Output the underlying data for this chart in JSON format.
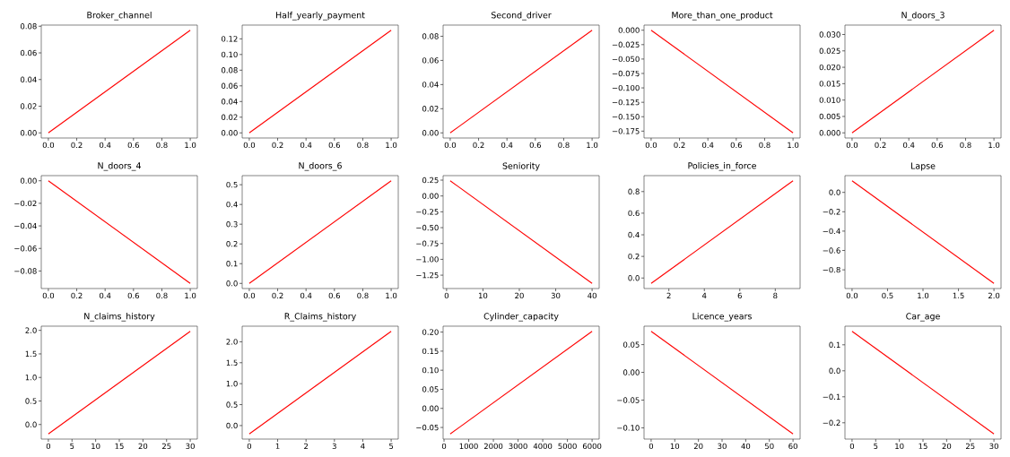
{
  "chart_data": [
    {
      "type": "line",
      "title": "Broker_channel",
      "x": [
        0,
        1
      ],
      "values": [
        0,
        0.077
      ],
      "color": "#ff0000",
      "xlim": [
        -0.05,
        1.05
      ],
      "ylim": [
        -0.00385,
        0.08085
      ],
      "xticks": [
        {
          "value": 0,
          "label": "0.0"
        },
        {
          "value": 0.2,
          "label": "0.2"
        },
        {
          "value": 0.4,
          "label": "0.4"
        },
        {
          "value": 0.6,
          "label": "0.6"
        },
        {
          "value": 0.8,
          "label": "0.8"
        },
        {
          "value": 1,
          "label": "1.0"
        }
      ],
      "yticks": [
        {
          "value": 0,
          "label": "0.00"
        },
        {
          "value": 0.02,
          "label": "0.02"
        },
        {
          "value": 0.04,
          "label": "0.04"
        },
        {
          "value": 0.06,
          "label": "0.06"
        },
        {
          "value": 0.08,
          "label": "0.08"
        }
      ]
    },
    {
      "type": "line",
      "title": "Half_yearly_payment",
      "x": [
        0,
        1
      ],
      "values": [
        0,
        0.131
      ],
      "color": "#ff0000",
      "xlim": [
        -0.05,
        1.05
      ],
      "ylim": [
        -0.00655,
        0.13755
      ],
      "xticks": [
        {
          "value": 0,
          "label": "0.0"
        },
        {
          "value": 0.2,
          "label": "0.2"
        },
        {
          "value": 0.4,
          "label": "0.4"
        },
        {
          "value": 0.6,
          "label": "0.6"
        },
        {
          "value": 0.8,
          "label": "0.8"
        },
        {
          "value": 1,
          "label": "1.0"
        }
      ],
      "yticks": [
        {
          "value": 0,
          "label": "0.00"
        },
        {
          "value": 0.02,
          "label": "0.02"
        },
        {
          "value": 0.04,
          "label": "0.04"
        },
        {
          "value": 0.06,
          "label": "0.06"
        },
        {
          "value": 0.08,
          "label": "0.08"
        },
        {
          "value": 0.1,
          "label": "0.10"
        },
        {
          "value": 0.12,
          "label": "0.12"
        }
      ]
    },
    {
      "type": "line",
      "title": "Second_driver",
      "x": [
        0,
        1
      ],
      "values": [
        0,
        0.085
      ],
      "color": "#ff0000",
      "xlim": [
        -0.05,
        1.05
      ],
      "ylim": [
        -0.00425,
        0.08925
      ],
      "xticks": [
        {
          "value": 0,
          "label": "0.0"
        },
        {
          "value": 0.2,
          "label": "0.2"
        },
        {
          "value": 0.4,
          "label": "0.4"
        },
        {
          "value": 0.6,
          "label": "0.6"
        },
        {
          "value": 0.8,
          "label": "0.8"
        },
        {
          "value": 1,
          "label": "1.0"
        }
      ],
      "yticks": [
        {
          "value": 0,
          "label": "0.00"
        },
        {
          "value": 0.02,
          "label": "0.02"
        },
        {
          "value": 0.04,
          "label": "0.04"
        },
        {
          "value": 0.06,
          "label": "0.06"
        },
        {
          "value": 0.08,
          "label": "0.08"
        }
      ]
    },
    {
      "type": "line",
      "title": "More_than_one_product",
      "x": [
        0,
        1
      ],
      "values": [
        0,
        -0.178
      ],
      "color": "#ff0000",
      "xlim": [
        -0.05,
        1.05
      ],
      "ylim": [
        -0.1869,
        0.0089
      ],
      "xticks": [
        {
          "value": 0,
          "label": "0.0"
        },
        {
          "value": 0.2,
          "label": "0.2"
        },
        {
          "value": 0.4,
          "label": "0.4"
        },
        {
          "value": 0.6,
          "label": "0.6"
        },
        {
          "value": 0.8,
          "label": "0.8"
        },
        {
          "value": 1,
          "label": "1.0"
        }
      ],
      "yticks": [
        {
          "value": 0,
          "label": "0.000"
        },
        {
          "value": -0.025,
          "label": "−0.025"
        },
        {
          "value": -0.05,
          "label": "−0.050"
        },
        {
          "value": -0.075,
          "label": "−0.075"
        },
        {
          "value": -0.1,
          "label": "−0.100"
        },
        {
          "value": -0.125,
          "label": "−0.125"
        },
        {
          "value": -0.15,
          "label": "−0.150"
        },
        {
          "value": -0.175,
          "label": "−0.175"
        }
      ]
    },
    {
      "type": "line",
      "title": "N_doors_3",
      "x": [
        0,
        1
      ],
      "values": [
        0,
        0.0313
      ],
      "color": "#ff0000",
      "xlim": [
        -0.05,
        1.05
      ],
      "ylim": [
        -0.00157,
        0.03287
      ],
      "xticks": [
        {
          "value": 0,
          "label": "0.0"
        },
        {
          "value": 0.2,
          "label": "0.2"
        },
        {
          "value": 0.4,
          "label": "0.4"
        },
        {
          "value": 0.6,
          "label": "0.6"
        },
        {
          "value": 0.8,
          "label": "0.8"
        },
        {
          "value": 1,
          "label": "1.0"
        }
      ],
      "yticks": [
        {
          "value": 0,
          "label": "0.000"
        },
        {
          "value": 0.005,
          "label": "0.005"
        },
        {
          "value": 0.01,
          "label": "0.010"
        },
        {
          "value": 0.015,
          "label": "0.015"
        },
        {
          "value": 0.02,
          "label": "0.020"
        },
        {
          "value": 0.025,
          "label": "0.025"
        },
        {
          "value": 0.03,
          "label": "0.030"
        }
      ]
    },
    {
      "type": "line",
      "title": "N_doors_4",
      "x": [
        0,
        1
      ],
      "values": [
        0,
        -0.091
      ],
      "color": "#ff0000",
      "xlim": [
        -0.05,
        1.05
      ],
      "ylim": [
        -0.09555,
        0.00455
      ],
      "xticks": [
        {
          "value": 0,
          "label": "0.0"
        },
        {
          "value": 0.2,
          "label": "0.2"
        },
        {
          "value": 0.4,
          "label": "0.4"
        },
        {
          "value": 0.6,
          "label": "0.6"
        },
        {
          "value": 0.8,
          "label": "0.8"
        },
        {
          "value": 1,
          "label": "1.0"
        }
      ],
      "yticks": [
        {
          "value": 0,
          "label": "0.00"
        },
        {
          "value": -0.02,
          "label": "−0.02"
        },
        {
          "value": -0.04,
          "label": "−0.04"
        },
        {
          "value": -0.06,
          "label": "−0.06"
        },
        {
          "value": -0.08,
          "label": "−0.08"
        }
      ]
    },
    {
      "type": "line",
      "title": "N_doors_6",
      "x": [
        0,
        1
      ],
      "values": [
        0,
        0.52
      ],
      "color": "#ff0000",
      "xlim": [
        -0.05,
        1.05
      ],
      "ylim": [
        -0.026,
        0.546
      ],
      "xticks": [
        {
          "value": 0,
          "label": "0.0"
        },
        {
          "value": 0.2,
          "label": "0.2"
        },
        {
          "value": 0.4,
          "label": "0.4"
        },
        {
          "value": 0.6,
          "label": "0.6"
        },
        {
          "value": 0.8,
          "label": "0.8"
        },
        {
          "value": 1,
          "label": "1.0"
        }
      ],
      "yticks": [
        {
          "value": 0,
          "label": "0.0"
        },
        {
          "value": 0.1,
          "label": "0.1"
        },
        {
          "value": 0.2,
          "label": "0.2"
        },
        {
          "value": 0.3,
          "label": "0.3"
        },
        {
          "value": 0.4,
          "label": "0.4"
        },
        {
          "value": 0.5,
          "label": "0.5"
        }
      ]
    },
    {
      "type": "line",
      "title": "Seniority",
      "x": [
        1,
        40
      ],
      "values": [
        0.24,
        -1.38
      ],
      "color": "#ff0000",
      "xlim": [
        -0.95,
        41.95
      ],
      "ylim": [
        -1.461,
        0.321
      ],
      "xticks": [
        0,
        10,
        20,
        30,
        40
      ],
      "yticks": [
        {
          "value": 0.25,
          "label": "0.25"
        },
        {
          "value": 0,
          "label": "0.00"
        },
        {
          "value": -0.25,
          "label": "−0.25"
        },
        {
          "value": -0.5,
          "label": "−0.50"
        },
        {
          "value": -0.75,
          "label": "−0.75"
        },
        {
          "value": -1,
          "label": "−1.00"
        },
        {
          "value": -1.25,
          "label": "−1.25"
        }
      ]
    },
    {
      "type": "line",
      "title": "Policies_in_force",
      "x": [
        1,
        9
      ],
      "values": [
        -0.05,
        0.9
      ],
      "color": "#ff0000",
      "xlim": [
        0.6,
        9.4
      ],
      "ylim": [
        -0.0975,
        0.9475
      ],
      "xticks": [
        2,
        4,
        6,
        8
      ],
      "yticks": [
        {
          "value": 0,
          "label": "0.0"
        },
        {
          "value": 0.2,
          "label": "0.2"
        },
        {
          "value": 0.4,
          "label": "0.4"
        },
        {
          "value": 0.6,
          "label": "0.6"
        },
        {
          "value": 0.8,
          "label": "0.8"
        }
      ]
    },
    {
      "type": "line",
      "title": "Lapse",
      "x": [
        0,
        2
      ],
      "values": [
        0.12,
        -0.94
      ],
      "color": "#ff0000",
      "xlim": [
        -0.1,
        2.1
      ],
      "ylim": [
        -0.993,
        0.173
      ],
      "xticks": [
        {
          "value": 0,
          "label": "0.0"
        },
        {
          "value": 0.5,
          "label": "0.5"
        },
        {
          "value": 1,
          "label": "1.0"
        },
        {
          "value": 1.5,
          "label": "1.5"
        },
        {
          "value": 2,
          "label": "2.0"
        }
      ],
      "yticks": [
        {
          "value": 0,
          "label": "0.0"
        },
        {
          "value": -0.2,
          "label": "−0.2"
        },
        {
          "value": -0.4,
          "label": "−0.4"
        },
        {
          "value": -0.6,
          "label": "−0.6"
        },
        {
          "value": -0.8,
          "label": "−0.8"
        }
      ]
    },
    {
      "type": "line",
      "title": "N_claims_history",
      "x": [
        0,
        30
      ],
      "values": [
        -0.2,
        1.98
      ],
      "color": "#ff0000",
      "xlim": [
        -1.5,
        31.5
      ],
      "ylim": [
        -0.309,
        2.089
      ],
      "xticks": [
        0,
        5,
        10,
        15,
        20,
        25,
        30
      ],
      "yticks": [
        {
          "value": 0,
          "label": "0.0"
        },
        {
          "value": 0.5,
          "label": "0.5"
        },
        {
          "value": 1,
          "label": "1.0"
        },
        {
          "value": 1.5,
          "label": "1.5"
        },
        {
          "value": 2,
          "label": "2.0"
        }
      ]
    },
    {
      "type": "line",
      "title": "R_Claims_history",
      "x": [
        0,
        5
      ],
      "values": [
        -0.2,
        2.25
      ],
      "color": "#ff0000",
      "xlim": [
        -0.25,
        5.25
      ],
      "ylim": [
        -0.3225,
        2.3725
      ],
      "xticks": [
        0,
        1,
        2,
        3,
        4,
        5
      ],
      "yticks": [
        {
          "value": 0,
          "label": "0.0"
        },
        {
          "value": 0.5,
          "label": "0.5"
        },
        {
          "value": 1,
          "label": "1.0"
        },
        {
          "value": 1.5,
          "label": "1.5"
        },
        {
          "value": 2,
          "label": "2.0"
        }
      ]
    },
    {
      "type": "line",
      "title": "Cylinder_capacity",
      "x": [
        250,
        6000
      ],
      "values": [
        -0.067,
        0.202
      ],
      "color": "#ff0000",
      "xlim": [
        -37.5,
        6287.5
      ],
      "ylim": [
        -0.08045,
        0.21545
      ],
      "xticks": [
        0,
        1000,
        2000,
        3000,
        4000,
        5000,
        6000
      ],
      "yticks": [
        {
          "value": -0.05,
          "label": "−0.05"
        },
        {
          "value": 0,
          "label": "0.00"
        },
        {
          "value": 0.05,
          "label": "0.05"
        },
        {
          "value": 0.1,
          "label": "0.10"
        },
        {
          "value": 0.15,
          "label": "0.15"
        },
        {
          "value": 0.2,
          "label": "0.20"
        }
      ]
    },
    {
      "type": "line",
      "title": "Licence_years",
      "x": [
        0,
        60
      ],
      "values": [
        0.074,
        -0.111
      ],
      "color": "#ff0000",
      "xlim": [
        -3,
        63
      ],
      "ylim": [
        -0.12025,
        0.08325
      ],
      "xticks": [
        0,
        10,
        20,
        30,
        40,
        50,
        60
      ],
      "yticks": [
        {
          "value": -0.1,
          "label": "−0.10"
        },
        {
          "value": -0.05,
          "label": "−0.05"
        },
        {
          "value": 0,
          "label": "0.00"
        },
        {
          "value": 0.05,
          "label": "0.05"
        }
      ]
    },
    {
      "type": "line",
      "title": "Car_age",
      "x": [
        0,
        30
      ],
      "values": [
        0.152,
        -0.243
      ],
      "color": "#ff0000",
      "xlim": [
        -1.5,
        31.5
      ],
      "ylim": [
        -0.26275,
        0.17175
      ],
      "xticks": [
        0,
        5,
        10,
        15,
        20,
        25,
        30
      ],
      "yticks": [
        {
          "value": -0.2,
          "label": "−0.2"
        },
        {
          "value": -0.1,
          "label": "−0.1"
        },
        {
          "value": 0,
          "label": "0.0"
        },
        {
          "value": 0.1,
          "label": "0.1"
        }
      ]
    }
  ]
}
